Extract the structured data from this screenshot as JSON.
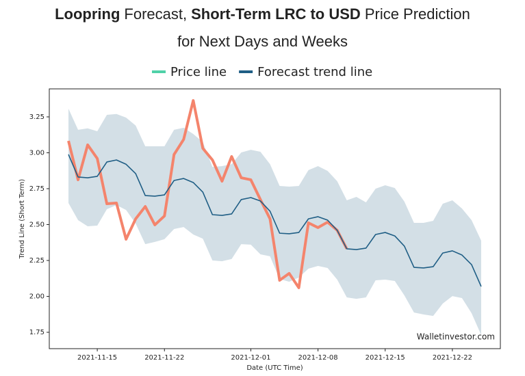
{
  "chart_data": {
    "type": "line",
    "title": [
      [
        {
          "text": "Loopring",
          "bold": true
        },
        {
          "text": "Forecast,",
          "bold": false
        },
        {
          "text": "Short-Term LRC to USD",
          "bold": true
        },
        {
          "text": "Price Prediction",
          "bold": false
        }
      ],
      [
        {
          "text": "for Next Days and Weeks",
          "bold": false
        }
      ]
    ],
    "x_label": "Date (UTC Time)",
    "y_label": "Trend Line (Short Term)",
    "watermark": "Walletinvestor.com",
    "x": [
      "2021-11-12",
      "2021-11-13",
      "2021-11-14",
      "2021-11-15",
      "2021-11-16",
      "2021-11-17",
      "2021-11-18",
      "2021-11-19",
      "2021-11-20",
      "2021-11-21",
      "2021-11-22",
      "2021-11-23",
      "2021-11-24",
      "2021-11-25",
      "2021-11-26",
      "2021-11-27",
      "2021-11-28",
      "2021-11-29",
      "2021-11-30",
      "2021-12-01",
      "2021-12-02",
      "2021-12-03",
      "2021-12-04",
      "2021-12-05",
      "2021-12-06",
      "2021-12-07",
      "2021-12-08",
      "2021-12-09",
      "2021-12-10",
      "2021-12-11",
      "2021-12-12",
      "2021-12-13",
      "2021-12-14",
      "2021-12-15",
      "2021-12-16",
      "2021-12-17",
      "2021-12-18",
      "2021-12-19",
      "2021-12-20",
      "2021-12-21",
      "2021-12-22",
      "2021-12-23",
      "2021-12-24",
      "2021-12-25"
    ],
    "xlim": [
      "2021-11-10",
      "2021-12-27"
    ],
    "xticks": [
      "2021-11-15",
      "2021-11-22",
      "2021-12-01",
      "2021-12-08",
      "2021-12-15",
      "2021-12-22"
    ],
    "ylim": [
      1.636,
      3.445
    ],
    "yticks": [
      {
        "value": 1.75,
        "label": "1.75"
      },
      {
        "value": 2.0,
        "label": "2.00"
      },
      {
        "value": 2.25,
        "label": "2.25"
      },
      {
        "value": 2.5,
        "label": "2.50"
      },
      {
        "value": 2.75,
        "label": "2.75"
      },
      {
        "value": 3.0,
        "label": "3.00"
      },
      {
        "value": 3.25,
        "label": "3.25"
      }
    ],
    "band": {
      "color": "#cbd9e2",
      "upper": [
        3.307,
        3.16,
        3.17,
        3.15,
        3.264,
        3.27,
        3.245,
        3.19,
        3.045,
        3.045,
        3.045,
        3.16,
        3.174,
        3.131,
        3.074,
        2.902,
        2.907,
        2.921,
        3.002,
        3.021,
        3.007,
        2.921,
        2.769,
        2.764,
        2.769,
        2.879,
        2.907,
        2.874,
        2.802,
        2.669,
        2.693,
        2.655,
        2.75,
        2.774,
        2.755,
        2.66,
        2.512,
        2.512,
        2.526,
        2.645,
        2.669,
        2.612,
        2.531,
        2.388
      ],
      "lower": [
        2.65,
        2.531,
        2.488,
        2.493,
        2.607,
        2.636,
        2.602,
        2.507,
        2.364,
        2.379,
        2.398,
        2.469,
        2.483,
        2.431,
        2.402,
        2.25,
        2.245,
        2.26,
        2.364,
        2.36,
        2.293,
        2.279,
        2.121,
        2.102,
        2.131,
        2.193,
        2.212,
        2.198,
        2.117,
        1.993,
        1.983,
        1.993,
        2.112,
        2.117,
        2.107,
        2.007,
        1.888,
        1.874,
        1.864,
        1.95,
        2.002,
        1.988,
        1.883,
        1.731
      ]
    },
    "series": [
      {
        "name": "Price line",
        "color": "#f4846c",
        "legend_color": "#4fd1a8",
        "width": 4,
        "values": [
          3.083,
          2.812,
          3.055,
          2.96,
          2.645,
          2.65,
          2.398,
          2.54,
          2.626,
          2.498,
          2.56,
          2.988,
          3.093,
          3.364,
          3.031,
          2.95,
          2.802,
          2.974,
          2.826,
          2.812,
          2.674,
          2.54,
          2.112,
          2.16,
          2.06,
          2.512,
          2.479,
          2.517,
          2.46,
          2.331,
          null,
          null,
          null,
          null,
          null,
          null,
          null,
          null,
          null,
          null,
          null,
          null,
          null,
          null
        ]
      },
      {
        "name": "Forecast trend line",
        "color": "#1f5e85",
        "legend_color": "#1f5e85",
        "width": 1.6,
        "values": [
          2.988,
          2.831,
          2.826,
          2.836,
          2.936,
          2.95,
          2.92,
          2.855,
          2.702,
          2.698,
          2.707,
          2.807,
          2.821,
          2.793,
          2.726,
          2.569,
          2.564,
          2.574,
          2.674,
          2.688,
          2.664,
          2.593,
          2.44,
          2.436,
          2.445,
          2.54,
          2.555,
          2.531,
          2.46,
          2.331,
          2.326,
          2.336,
          2.431,
          2.445,
          2.421,
          2.35,
          2.202,
          2.198,
          2.207,
          2.302,
          2.317,
          2.288,
          2.221,
          2.069
        ]
      }
    ]
  }
}
